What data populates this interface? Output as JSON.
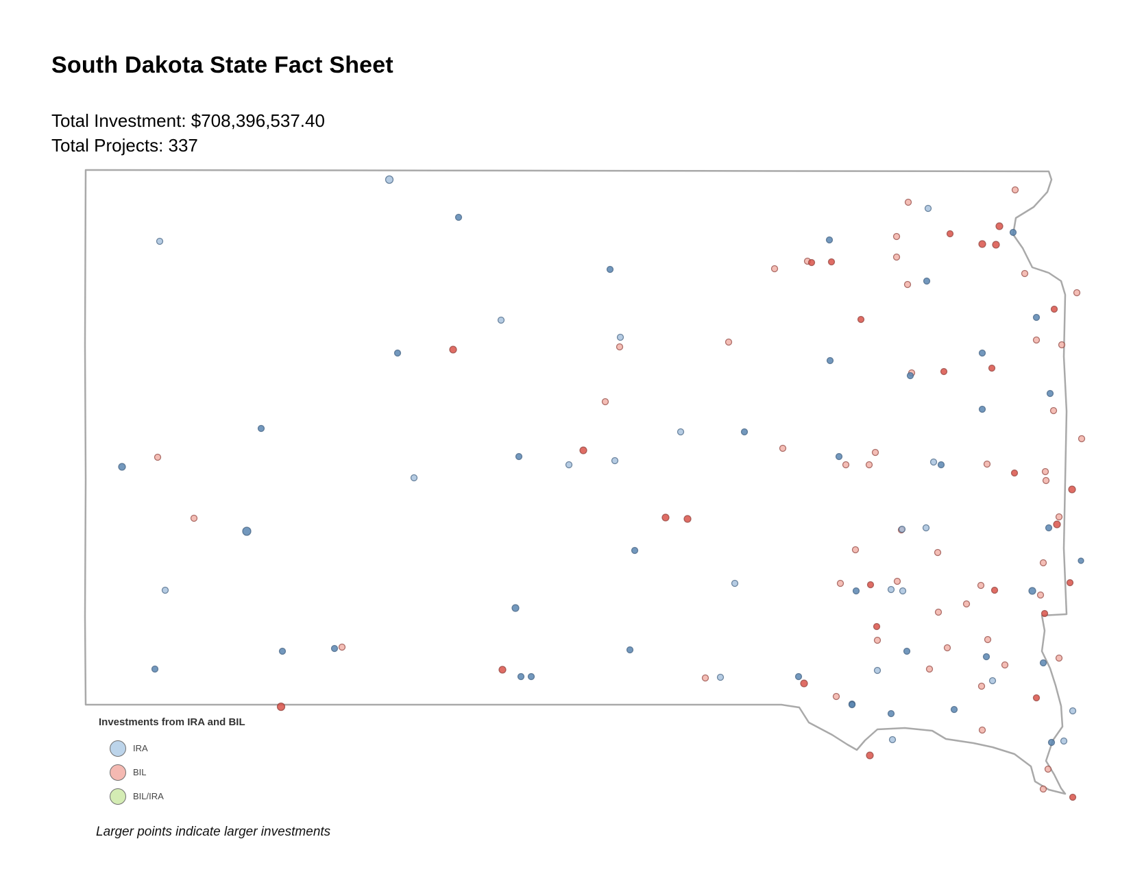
{
  "title": "South Dakota State Fact Sheet",
  "total_investment": "Total Investment: $708,396,537.40",
  "total_projects": "Total Projects: 337",
  "legend": {
    "title": "Investments from IRA and BIL",
    "items": [
      {
        "key": "ira",
        "label": "IRA",
        "color": "#bcd4ea"
      },
      {
        "key": "bil",
        "label": "BIL",
        "color": "#f4b9b2"
      },
      {
        "key": "bilira",
        "label": "BIL/IRA",
        "color": "#d4ecb4"
      }
    ]
  },
  "note": "Larger points indicate larger investments",
  "colors": {
    "ira_fill": "#9dbbd9",
    "ira_dark": "#5b86b2",
    "ira_stroke": "#3a5a7a",
    "bil_fill": "#f0a89e",
    "bil_dark": "#d9534a",
    "bil_stroke": "#8a3a34",
    "state_outline": "#a9a9a9"
  }
}
